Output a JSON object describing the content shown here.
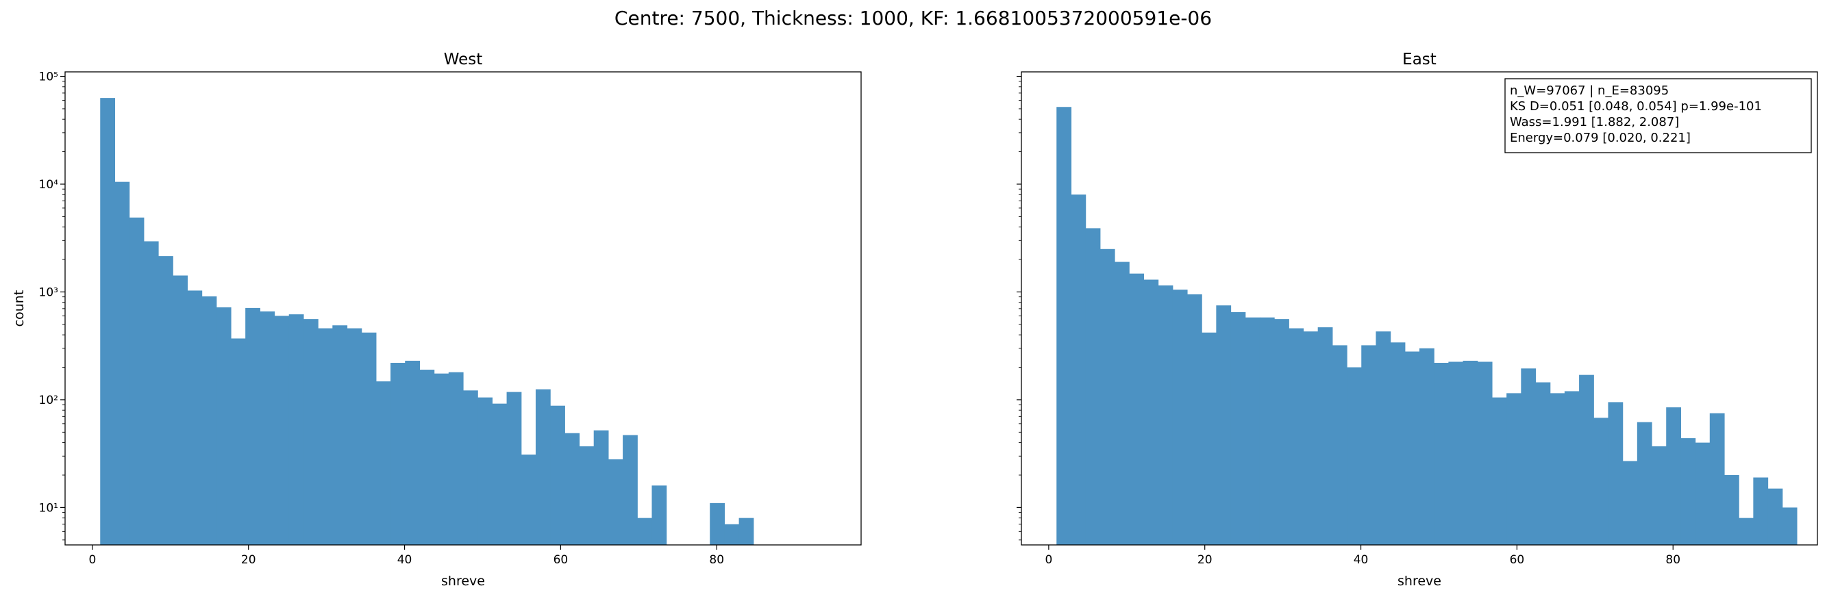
{
  "figure": {
    "suptitle": "Centre: 7500, Thickness: 1000, KF: 1.6681005372000591e-06",
    "bar_color": "#4c92c3"
  },
  "chart_data": [
    {
      "type": "bar",
      "title": "West",
      "xlabel": "shreve",
      "ylabel": "count",
      "yscale": "log",
      "xlim": [
        -3.5,
        98.5
      ],
      "ylim": [
        4.5,
        110000
      ],
      "xticks": [
        0,
        20,
        40,
        60,
        80
      ],
      "xtick_labels": [
        "0",
        "20",
        "40",
        "60",
        "80"
      ],
      "yticks": [
        10,
        100,
        1000,
        10000,
        100000
      ],
      "ytick_labels": [
        "10¹",
        "10²",
        "10³",
        "10⁴",
        "10⁵"
      ],
      "bin_start": 1.0,
      "bin_width": 1.86,
      "values": [
        63000,
        10500,
        4900,
        2950,
        2150,
        1420,
        1030,
        910,
        720,
        370,
        710,
        660,
        600,
        620,
        560,
        460,
        490,
        460,
        420,
        148,
        220,
        230,
        190,
        175,
        180,
        122,
        105,
        92,
        118,
        31,
        125,
        88,
        49,
        37,
        52,
        28,
        47,
        8,
        16,
        0,
        0,
        0,
        11,
        7,
        8,
        0,
        0,
        0,
        0,
        0
      ],
      "annotation": []
    },
    {
      "type": "bar",
      "title": "East",
      "xlabel": "shreve",
      "ylabel": "",
      "yscale": "log",
      "xlim": [
        -3.5,
        98.5
      ],
      "ylim": [
        4.5,
        110000
      ],
      "xticks": [
        0,
        20,
        40,
        60,
        80
      ],
      "xtick_labels": [
        "0",
        "20",
        "40",
        "60",
        "80"
      ],
      "yticks": [
        10,
        100,
        1000,
        10000,
        100000
      ],
      "ytick_labels": [
        "",
        "",
        "",
        "",
        ""
      ],
      "bin_start": 1.0,
      "bin_width": 1.86,
      "values": [
        52000,
        8000,
        3900,
        2500,
        1900,
        1480,
        1300,
        1150,
        1050,
        950,
        420,
        750,
        650,
        580,
        580,
        560,
        460,
        430,
        470,
        320,
        200,
        320,
        430,
        340,
        280,
        300,
        220,
        225,
        230,
        225,
        105,
        115,
        195,
        145,
        115,
        120,
        170,
        68,
        95,
        27,
        62,
        37,
        85,
        44,
        40,
        75,
        20,
        8,
        19,
        15,
        10
      ],
      "annotation": [
        "n_W=97067 | n_E=83095",
        "KS D=0.051 [0.048, 0.054]  p=1.99e-101",
        "Wass=1.991 [1.882, 2.087]",
        "Energy=0.079 [0.020, 0.221]"
      ]
    }
  ]
}
